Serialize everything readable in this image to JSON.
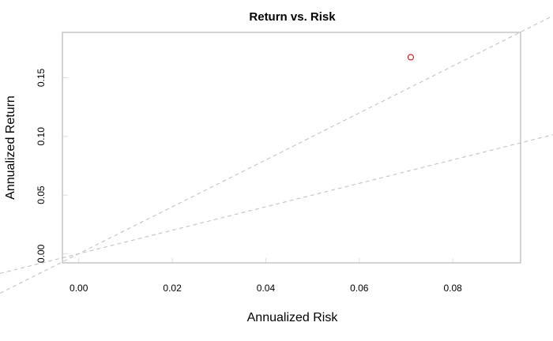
{
  "chart_data": {
    "type": "scatter",
    "title": "Return vs. Risk",
    "xlabel": "Annualized Risk",
    "ylabel": "Annualized Return",
    "xlim": [
      -0.0035,
      0.0945
    ],
    "ylim": [
      -0.0078,
      0.1887
    ],
    "xticks": [
      "0.00",
      "0.02",
      "0.04",
      "0.06",
      "0.08"
    ],
    "yticks": [
      "0.00",
      "0.05",
      "0.10",
      "0.15"
    ],
    "xtick_values": [
      0.0,
      0.02,
      0.04,
      0.06,
      0.08
    ],
    "ytick_values": [
      0.0,
      0.05,
      0.1,
      0.15
    ],
    "points": [
      {
        "x": 0.071,
        "y": 0.1675
      }
    ],
    "reference_lines": [
      {
        "slope": 2.0,
        "intercept": 0.0
      },
      {
        "slope": 1.0,
        "intercept": 0.0
      }
    ],
    "colors": {
      "point": "#cc0000",
      "reference_line": "#bdbdbd",
      "box": "#aaaaaa"
    },
    "grid": false,
    "legend": "none"
  }
}
